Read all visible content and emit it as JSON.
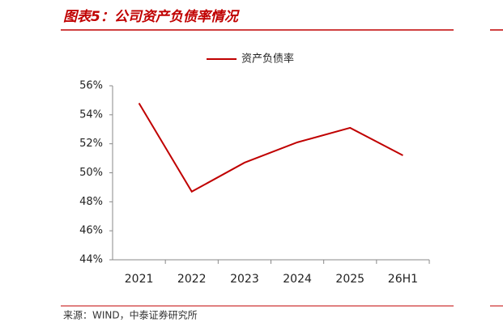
{
  "chart_data": {
    "type": "line",
    "title": "图表5：公司资产负债率情况",
    "source": "来源：WIND，中泰证券研究所",
    "categories": [
      "2021",
      "2022",
      "2023",
      "2024",
      "2025",
      "26H1"
    ],
    "series": [
      {
        "name": "资产负债率",
        "color": "#c00000",
        "values": [
          54.8,
          48.7,
          50.7,
          52.1,
          53.1,
          51.2
        ]
      }
    ],
    "ylim": [
      44,
      56
    ],
    "yticks": [
      {
        "value": 44,
        "label": "44%"
      },
      {
        "value": 46,
        "label": "46%"
      },
      {
        "value": 48,
        "label": "48%"
      },
      {
        "value": 50,
        "label": "50%"
      },
      {
        "value": 52,
        "label": "52%"
      },
      {
        "value": 54,
        "label": "54%"
      },
      {
        "value": 56,
        "label": "56%"
      }
    ],
    "legend": "top"
  }
}
